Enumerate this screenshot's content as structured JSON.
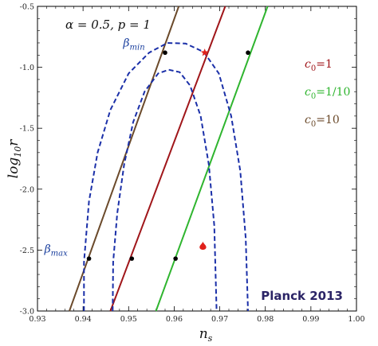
{
  "chart_data": {
    "type": "line",
    "xlabel": "n",
    "xlabel_sub": "s",
    "ylabel_prefix": "log",
    "ylabel_sub": "10",
    "ylabel_var": "r",
    "xlim": [
      0.93,
      1.0
    ],
    "ylim": [
      -3.0,
      -0.5
    ],
    "xticks": [
      0.93,
      0.94,
      0.95,
      0.96,
      0.97,
      0.98,
      0.99,
      1.0
    ],
    "xtick_labels": [
      "0.93",
      "0.94",
      "0.95",
      "0.96",
      "0.97",
      "0.98",
      "0.99",
      "1.00"
    ],
    "yticks": [
      -3.0,
      -2.5,
      -2.0,
      -1.5,
      -1.0,
      -0.5
    ],
    "ytick_labels": [
      "-3.0",
      "-2.5",
      "-2.0",
      "-1.5",
      "-1.0",
      "-0.5"
    ],
    "parameter_label": "α = 0.5,  p = 1",
    "watermark": "Planck 2013",
    "series": [
      {
        "name": "c0=10",
        "label_main": "c",
        "label_sub": "0",
        "label_value": "=10",
        "color": "#6b4a2b",
        "points": [
          [
            0.937,
            -3.0
          ],
          [
            0.961,
            -0.5
          ]
        ]
      },
      {
        "name": "c0=1",
        "label_main": "c",
        "label_sub": "0",
        "label_value": "=1",
        "color": "#a0161a",
        "points": [
          [
            0.946,
            -3.0
          ],
          [
            0.9712,
            -0.5
          ]
        ]
      },
      {
        "name": "c0=1/10",
        "label_main": "c",
        "label_sub": "0",
        "label_value": "=1/10",
        "color": "#2fb52f",
        "points": [
          [
            0.956,
            -3.0
          ],
          [
            0.9805,
            -0.5
          ]
        ]
      }
    ],
    "contours": [
      {
        "name": "outer",
        "color": "#1a2fa8",
        "style": "dashed",
        "points": [
          [
            0.9402,
            -3.0
          ],
          [
            0.9402,
            -2.6
          ],
          [
            0.9413,
            -2.1
          ],
          [
            0.9432,
            -1.7
          ],
          [
            0.946,
            -1.35
          ],
          [
            0.95,
            -1.05
          ],
          [
            0.9545,
            -0.88
          ],
          [
            0.9585,
            -0.8
          ],
          [
            0.9625,
            -0.805
          ],
          [
            0.9665,
            -0.875
          ],
          [
            0.9698,
            -1.05
          ],
          [
            0.9725,
            -1.4
          ],
          [
            0.9745,
            -1.85
          ],
          [
            0.9757,
            -2.4
          ],
          [
            0.9762,
            -3.0
          ]
        ]
      },
      {
        "name": "inner",
        "color": "#1a2fa8",
        "style": "dashed",
        "points": [
          [
            0.9465,
            -3.0
          ],
          [
            0.9466,
            -2.6
          ],
          [
            0.9475,
            -2.2
          ],
          [
            0.949,
            -1.8
          ],
          [
            0.951,
            -1.45
          ],
          [
            0.9535,
            -1.2
          ],
          [
            0.9565,
            -1.05
          ],
          [
            0.9588,
            -1.02
          ],
          [
            0.9612,
            -1.04
          ],
          [
            0.9635,
            -1.15
          ],
          [
            0.9658,
            -1.4
          ],
          [
            0.9676,
            -1.8
          ],
          [
            0.9688,
            -2.3
          ],
          [
            0.9693,
            -3.0
          ]
        ]
      }
    ],
    "markers": [
      {
        "x": 0.958,
        "y": -0.88
      },
      {
        "x": 0.9762,
        "y": -0.88
      },
      {
        "x": 0.9413,
        "y": -2.57
      },
      {
        "x": 0.9507,
        "y": -2.57
      },
      {
        "x": 0.9603,
        "y": -2.57
      }
    ],
    "red_markers": [
      {
        "x": 0.9667,
        "y": -0.88,
        "shape": "star"
      },
      {
        "x": 0.9663,
        "y": -2.47,
        "shape": "drop"
      }
    ],
    "annotations": [
      {
        "main": "β",
        "sub": "min",
        "x": 0.9488,
        "y": -0.83
      },
      {
        "main": "β",
        "sub": "max",
        "x": 0.9315,
        "y": -2.52
      }
    ]
  }
}
